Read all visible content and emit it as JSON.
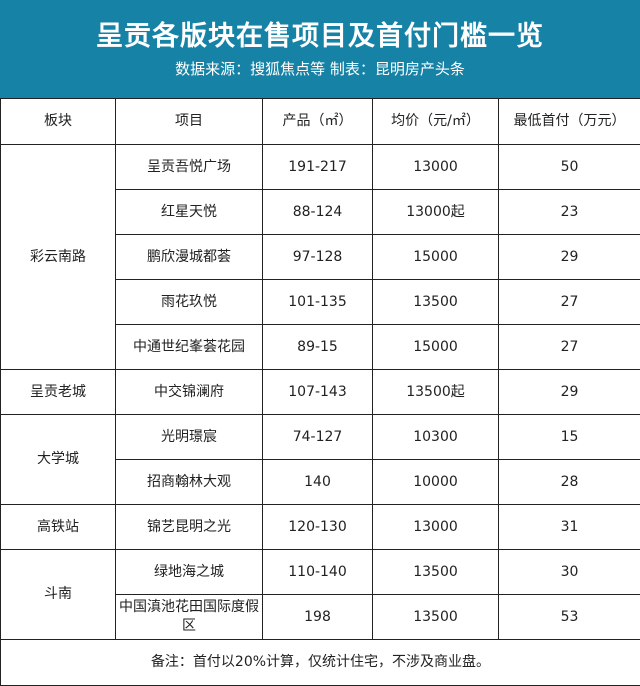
{
  "header": {
    "title": "呈贡各版块在售项目及首付门槛一览",
    "subtitle": "数据来源：搜狐焦点等  制表：昆明房产头条",
    "background_color": "#1683a6"
  },
  "table": {
    "columns": [
      "板块",
      "项目",
      "产品（㎡）",
      "均价（元/㎡）",
      "最低首付（万元）"
    ],
    "groups": [
      {
        "district": "彩云南路",
        "rows": [
          {
            "project": "呈贡吾悦广场",
            "size": "191-217",
            "price": "13000",
            "down_payment": "50"
          },
          {
            "project": "红星天悦",
            "size": "88-124",
            "price": "13000起",
            "down_payment": "23"
          },
          {
            "project": "鹏欣漫城都荟",
            "size": "97-128",
            "price": "15000",
            "down_payment": "29"
          },
          {
            "project": "雨花玖悦",
            "size": "101-135",
            "price": "13500",
            "down_payment": "27"
          },
          {
            "project": "中通世纪峯荟花园",
            "size": "89-15",
            "price": "15000",
            "down_payment": "27"
          }
        ]
      },
      {
        "district": "呈贡老城",
        "rows": [
          {
            "project": "中交锦澜府",
            "size": "107-143",
            "price": "13500起",
            "down_payment": "29"
          }
        ]
      },
      {
        "district": "大学城",
        "rows": [
          {
            "project": "光明璟宸",
            "size": "74-127",
            "price": "10300",
            "down_payment": "15"
          },
          {
            "project": "招商翰林大观",
            "size": "140",
            "price": "10000",
            "down_payment": "28"
          }
        ]
      },
      {
        "district": "高铁站",
        "rows": [
          {
            "project": "锦艺昆明之光",
            "size": "120-130",
            "price": "13000",
            "down_payment": "31"
          }
        ]
      },
      {
        "district": "斗南",
        "rows": [
          {
            "project": "绿地海之城",
            "size": "110-140",
            "price": "13500",
            "down_payment": "30"
          },
          {
            "project": "中国滇池花田国际度假区",
            "size": "198",
            "price": "13500",
            "down_payment": "53"
          }
        ]
      }
    ],
    "note": "备注：首付以20%计算，仅统计住宅，不涉及商业盘。"
  }
}
